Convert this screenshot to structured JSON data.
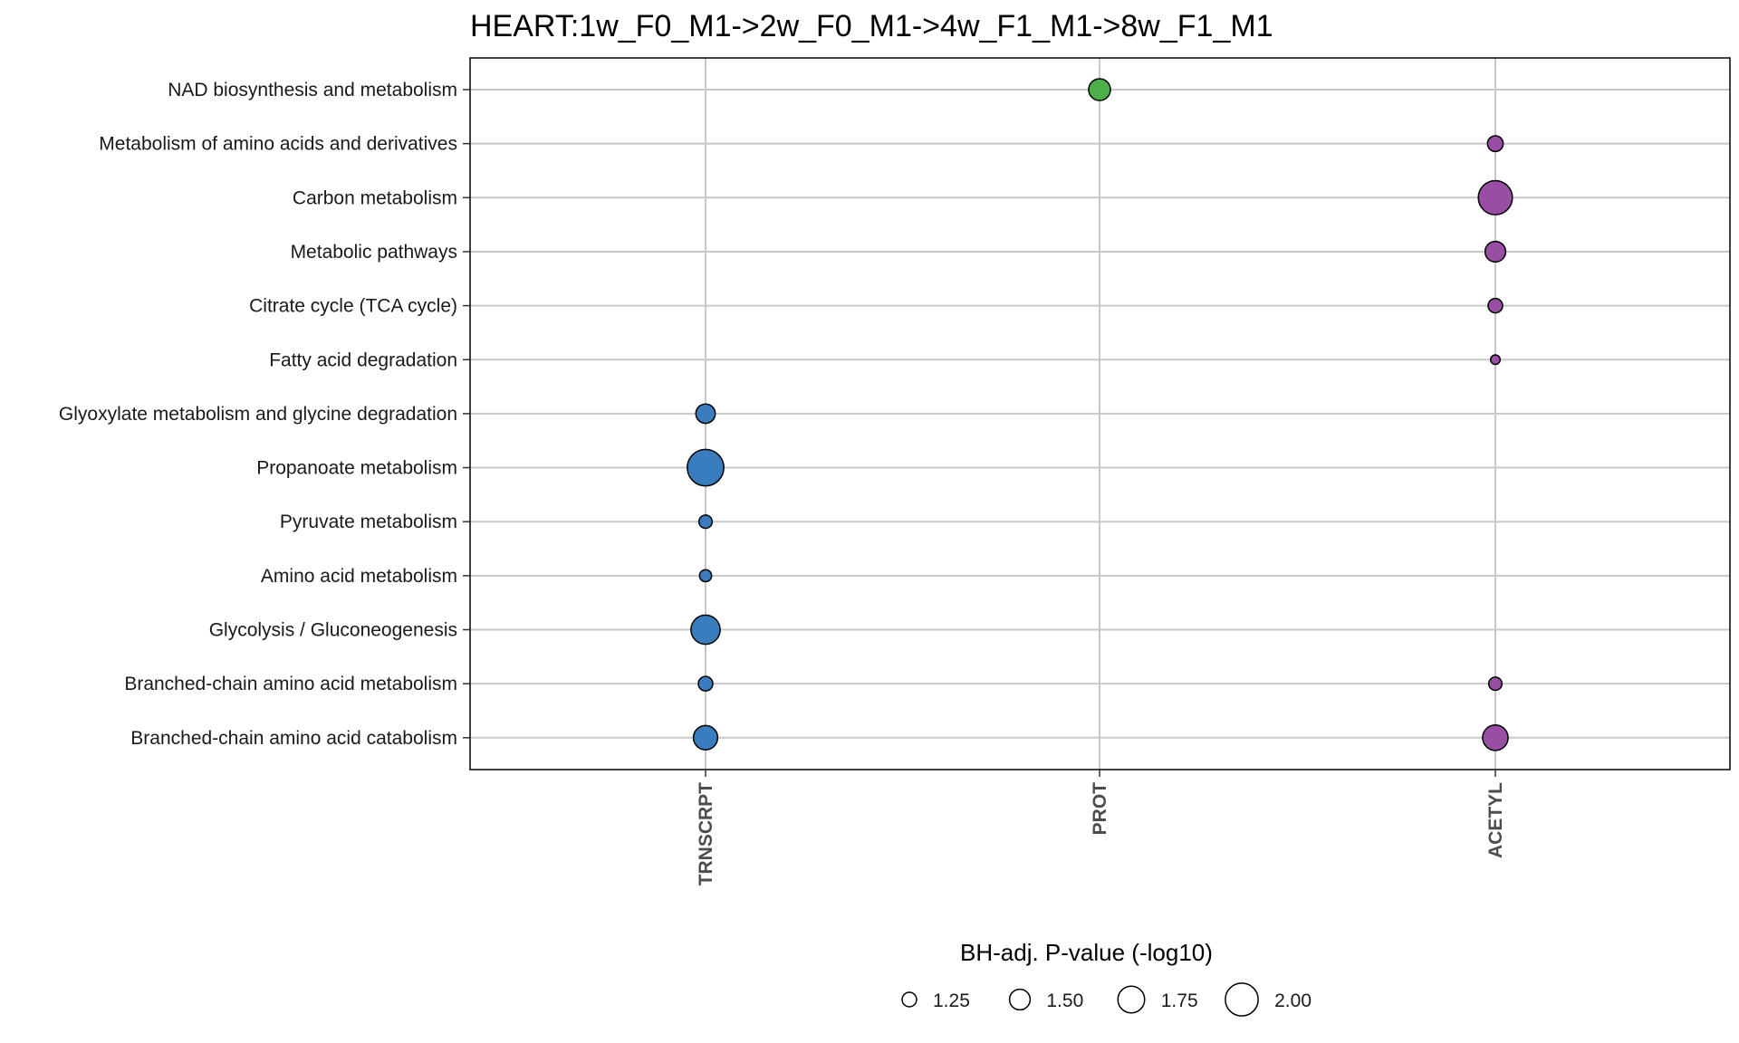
{
  "chart_data": {
    "type": "scatter",
    "title": "HEART:1w_F0_M1->2w_F0_M1->4w_F1_M1->8w_F1_M1",
    "xlabel": "",
    "ylabel": "",
    "x_categories": [
      "TRNSCRPT",
      "PROT",
      "ACETYL"
    ],
    "y_categories": [
      "NAD biosynthesis and metabolism",
      "Metabolism of amino acids and derivatives",
      "Carbon metabolism",
      "Metabolic pathways",
      "Citrate cycle (TCA cycle)",
      "Fatty acid degradation",
      "Glyoxylate metabolism and glycine degradation",
      "Propanoate metabolism",
      "Pyruvate metabolism",
      "Amino acid metabolism",
      "Glycolysis / Gluconeogenesis",
      "Branched-chain amino acid metabolism",
      "Branched-chain amino acid catabolism"
    ],
    "colors": {
      "TRNSCRPT": "#3a7dbf",
      "PROT": "#4daf4a",
      "ACETYL": "#984ea3"
    },
    "size_range": [
      1.1,
      2.1
    ],
    "points": [
      {
        "x": "PROT",
        "y": "NAD biosynthesis and metabolism",
        "size": 1.55
      },
      {
        "x": "ACETYL",
        "y": "Metabolism of amino acids and derivatives",
        "size": 1.3
      },
      {
        "x": "ACETYL",
        "y": "Carbon metabolism",
        "size": 2.05
      },
      {
        "x": "ACETYL",
        "y": "Metabolic pathways",
        "size": 1.5
      },
      {
        "x": "ACETYL",
        "y": "Citrate cycle (TCA cycle)",
        "size": 1.25
      },
      {
        "x": "ACETYL",
        "y": "Fatty acid degradation",
        "size": 1.05
      },
      {
        "x": "TRNSCRPT",
        "y": "Glyoxylate metabolism and glycine degradation",
        "size": 1.45
      },
      {
        "x": "TRNSCRPT",
        "y": "Propanoate metabolism",
        "size": 2.15
      },
      {
        "x": "TRNSCRPT",
        "y": "Pyruvate metabolism",
        "size": 1.2
      },
      {
        "x": "TRNSCRPT",
        "y": "Amino acid metabolism",
        "size": 1.15
      },
      {
        "x": "TRNSCRPT",
        "y": "Glycolysis / Gluconeogenesis",
        "size": 1.85
      },
      {
        "x": "TRNSCRPT",
        "y": "Branched-chain amino acid metabolism",
        "size": 1.25
      },
      {
        "x": "ACETYL",
        "y": "Branched-chain amino acid metabolism",
        "size": 1.2
      },
      {
        "x": "TRNSCRPT",
        "y": "Branched-chain amino acid catabolism",
        "size": 1.65
      },
      {
        "x": "ACETYL",
        "y": "Branched-chain amino acid catabolism",
        "size": 1.7
      }
    ],
    "legend": {
      "title": "BH-adj. P-value (-log10)",
      "placement": "bottom",
      "values": [
        1.25,
        1.5,
        1.75,
        2.0
      ],
      "labels": [
        "1.25",
        "1.50",
        "1.75",
        "2.00"
      ]
    },
    "grid": true
  }
}
